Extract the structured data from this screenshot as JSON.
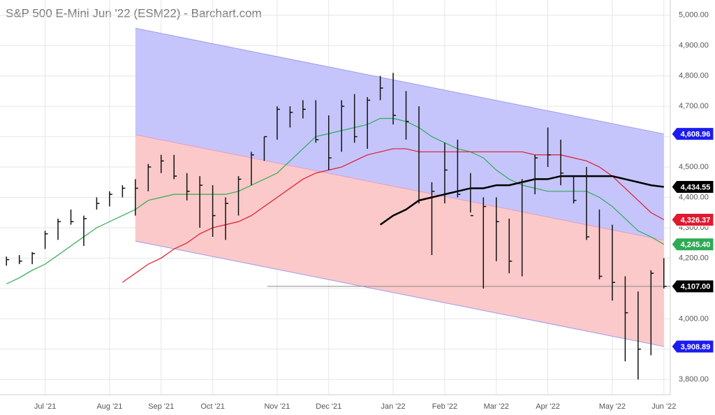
{
  "chart_data": {
    "type": "ohlc",
    "title": "S&P 500 E-Mini Jun '22 (ESM22) - Barchart.com",
    "categories": [
      null,
      null,
      null,
      "Jul '21",
      null,
      null,
      null,
      null,
      "Aug '21",
      null,
      null,
      null,
      "Sep '21",
      null,
      null,
      null,
      "Oct '21",
      null,
      null,
      null,
      null,
      "Nov '21",
      null,
      null,
      null,
      "Dec '21",
      null,
      null,
      null,
      null,
      "Jan '22",
      null,
      null,
      null,
      "Feb '22",
      null,
      null,
      null,
      "Mar '22",
      null,
      null,
      null,
      "Apr '22",
      null,
      null,
      null,
      null,
      "May '22",
      null,
      null,
      null,
      "Jun '22"
    ],
    "high": [
      4205,
      4210,
      4220,
      4290,
      4330,
      4360,
      4340,
      4400,
      4420,
      4440,
      4460,
      4510,
      4540,
      4540,
      4480,
      4470,
      4440,
      4400,
      4470,
      4550,
      4600,
      4700,
      4700,
      4720,
      4720,
      4670,
      4720,
      4740,
      4730,
      4800,
      4810,
      4750,
      4700,
      4450,
      4580,
      4590,
      4480,
      4400,
      4400,
      4330,
      4460,
      4540,
      4630,
      4590,
      4470,
      4500,
      4360,
      4310,
      4140,
      4090,
      4160,
      4200
    ],
    "low": [
      4175,
      4180,
      4180,
      4230,
      4260,
      4310,
      4240,
      4360,
      4370,
      4400,
      4340,
      4420,
      4480,
      4460,
      4390,
      4300,
      4270,
      4260,
      4340,
      4440,
      4520,
      4590,
      4630,
      4660,
      4580,
      4490,
      4550,
      4580,
      4560,
      4720,
      4640,
      4590,
      4380,
      4210,
      4380,
      4400,
      4350,
      4100,
      4190,
      4150,
      4140,
      4410,
      4500,
      4440,
      4380,
      4260,
      4130,
      4060,
      3860,
      3800,
      3880,
      4100
    ],
    "close": [
      4195,
      4190,
      4215,
      4280,
      4320,
      4320,
      4330,
      4380,
      4410,
      4430,
      4430,
      4500,
      4520,
      4470,
      4420,
      4440,
      4340,
      4380,
      4460,
      4540,
      4600,
      4690,
      4680,
      4690,
      4590,
      4530,
      4700,
      4600,
      4720,
      4760,
      4670,
      4650,
      4390,
      4420,
      4490,
      4410,
      4340,
      4370,
      4320,
      4190,
      4450,
      4530,
      4540,
      4480,
      4390,
      4270,
      4140,
      4120,
      4020,
      3900,
      4150,
      4107
    ],
    "bar_color": "#111111",
    "series": [
      {
        "color": "#2eaa55",
        "values": [
          4115,
          4135,
          4160,
          4180,
          4210,
          4240,
          4270,
          4300,
          4320,
          4340,
          4360,
          4390,
          4400,
          4410,
          4410,
          4410,
          4410,
          4410,
          4420,
          4440,
          4460,
          4480,
          4520,
          4560,
          4600,
          4610,
          4620,
          4630,
          4640,
          4660,
          4660,
          4650,
          4630,
          4600,
          4580,
          4560,
          4550,
          4530,
          4490,
          4460,
          4440,
          4430,
          4420,
          4420,
          4420,
          4420,
          4400,
          4370,
          4330,
          4290,
          4270,
          4245.4
        ]
      },
      {
        "color": "#e0192e",
        "values": [
          null,
          null,
          null,
          null,
          null,
          null,
          null,
          null,
          null,
          4120,
          4150,
          4180,
          4200,
          4230,
          4250,
          4280,
          4300,
          4310,
          4320,
          4340,
          4370,
          4400,
          4430,
          4460,
          4480,
          4490,
          4500,
          4520,
          4540,
          4550,
          4560,
          4560,
          4550,
          4550,
          4550,
          4550,
          4550,
          4550,
          4550,
          4550,
          4550,
          4540,
          4540,
          4540,
          4530,
          4520,
          4500,
          4470,
          4430,
          4390,
          4350,
          4326.37
        ]
      },
      {
        "color": "#000000",
        "values": [
          null,
          null,
          null,
          null,
          null,
          null,
          null,
          null,
          null,
          null,
          null,
          null,
          null,
          null,
          null,
          null,
          null,
          null,
          null,
          null,
          null,
          null,
          null,
          null,
          null,
          null,
          null,
          null,
          null,
          4310,
          4340,
          4360,
          4390,
          4400,
          4410,
          4420,
          4430,
          4430,
          4440,
          4440,
          4450,
          4460,
          4460,
          4470,
          4470,
          4470,
          4470,
          4470,
          4460,
          4450,
          4440,
          4434.55
        ]
      }
    ],
    "channel": {
      "upper": [
        4957,
        4608.96
      ],
      "lower": [
        4256,
        3908.89
      ],
      "upper_color": "#c5c5fb",
      "lower_color": "#fbc9c9",
      "edge_color": "#9b9bf0"
    },
    "price_tags": [
      {
        "value": 4608.96,
        "label": "4,608.96",
        "color": "#1c1cf0"
      },
      {
        "value": 4434.55,
        "label": "4,434.55",
        "color": "#000000"
      },
      {
        "value": 4326.37,
        "label": "4,326.37",
        "color": "#e0192e"
      },
      {
        "value": 4245.4,
        "label": "4,245.40",
        "color": "#2eaa55"
      },
      {
        "value": 4107,
        "label": "4,107.00",
        "color": "#000000"
      },
      {
        "value": 3908.89,
        "label": "3,908.89",
        "color": "#1c1cf0"
      }
    ],
    "ylim": [
      3750,
      5050
    ],
    "yticks": [
      {
        "value": 3800,
        "label": "3,800.00"
      },
      {
        "value": 3900,
        "label": "3,900.00"
      },
      {
        "value": 4000,
        "label": "4,000.00"
      },
      {
        "value": 4100,
        "label": "4,100.00"
      },
      {
        "value": 4200,
        "label": "4,200.00"
      },
      {
        "value": 4300,
        "label": "4,300.00"
      },
      {
        "value": 4400,
        "label": "4,400.00"
      },
      {
        "value": 4500,
        "label": "4,500.00"
      },
      {
        "value": 4600,
        "label": "4,600.00"
      },
      {
        "value": 4700,
        "label": "4,700.00"
      },
      {
        "value": 4800,
        "label": "4,800.00"
      },
      {
        "value": 4900,
        "label": "4,900.00"
      },
      {
        "value": 5000,
        "label": "5,000.00"
      }
    ],
    "grid": true
  }
}
